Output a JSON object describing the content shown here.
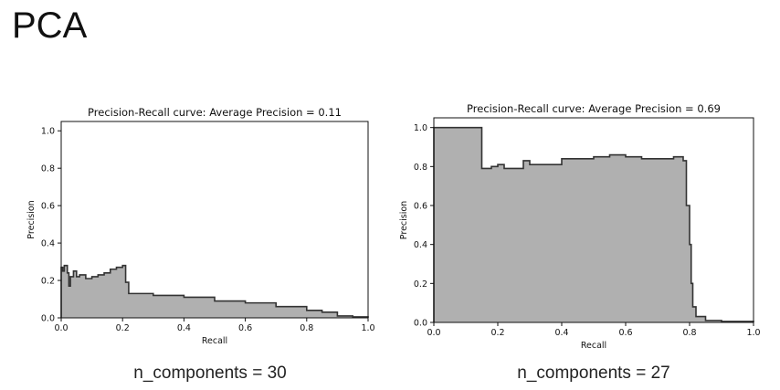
{
  "slide": {
    "title": "PCA"
  },
  "captions": [
    "n_components = 30",
    "n_components = 27"
  ],
  "colors": {
    "area_fill": "#b0b0b0",
    "curve_stroke": "#333333",
    "axis": "#111111",
    "background": "#ffffff"
  },
  "chart_data": [
    {
      "type": "area",
      "title_prefix": "Precision-Recall curve: Average Precision =",
      "title_value": "0.11",
      "xlabel": "Recall",
      "ylabel": "Precision",
      "xlim": [
        0.0,
        1.0
      ],
      "ylim": [
        0.0,
        1.05
      ],
      "xticks": [
        "0.0",
        "0.2",
        "0.4",
        "0.6",
        "0.8",
        "1.0"
      ],
      "yticks": [
        "0.0",
        "0.2",
        "0.4",
        "0.6",
        "0.8",
        "1.0"
      ],
      "grid": false,
      "x": [
        0.0,
        0.0,
        0.005,
        0.01,
        0.02,
        0.025,
        0.03,
        0.04,
        0.05,
        0.06,
        0.08,
        0.1,
        0.12,
        0.14,
        0.16,
        0.18,
        0.2,
        0.21,
        0.22,
        0.23,
        0.3,
        0.4,
        0.5,
        0.6,
        0.7,
        0.8,
        0.85,
        0.9,
        0.95,
        1.0
      ],
      "y": [
        0.0,
        0.27,
        0.25,
        0.28,
        0.24,
        0.17,
        0.22,
        0.25,
        0.22,
        0.23,
        0.21,
        0.22,
        0.23,
        0.24,
        0.26,
        0.27,
        0.28,
        0.19,
        0.13,
        0.13,
        0.12,
        0.11,
        0.09,
        0.08,
        0.06,
        0.04,
        0.03,
        0.01,
        0.005,
        0.0
      ]
    },
    {
      "type": "area",
      "title_prefix": "Precision-Recall curve: Average Precision =",
      "title_value": "0.69",
      "xlabel": "Recall",
      "ylabel": "Precision",
      "xlim": [
        0.0,
        1.0
      ],
      "ylim": [
        0.0,
        1.05
      ],
      "xticks": [
        "0.0",
        "0.2",
        "0.4",
        "0.6",
        "0.8",
        "1.0"
      ],
      "yticks": [
        "0.0",
        "0.2",
        "0.4",
        "0.6",
        "0.8",
        "1.0"
      ],
      "grid": false,
      "x": [
        0.0,
        0.0,
        0.15,
        0.15,
        0.18,
        0.2,
        0.22,
        0.28,
        0.3,
        0.4,
        0.5,
        0.55,
        0.6,
        0.65,
        0.7,
        0.75,
        0.78,
        0.79,
        0.8,
        0.805,
        0.81,
        0.82,
        0.85,
        0.9,
        1.0
      ],
      "y": [
        0.0,
        1.0,
        1.0,
        0.79,
        0.8,
        0.81,
        0.79,
        0.83,
        0.81,
        0.84,
        0.85,
        0.86,
        0.85,
        0.84,
        0.84,
        0.85,
        0.83,
        0.6,
        0.4,
        0.2,
        0.08,
        0.03,
        0.01,
        0.005,
        0.0
      ]
    }
  ]
}
